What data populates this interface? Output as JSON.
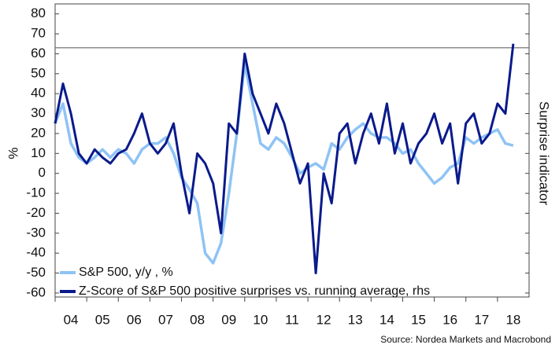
{
  "chart_data": {
    "type": "line",
    "y_label": "%",
    "y2_label": "Surprise indicator",
    "source": "Source: Nordea Markets and Macrobond",
    "x": [
      2004,
      2004.25,
      2004.5,
      2004.75,
      2005,
      2005.25,
      2005.5,
      2005.75,
      2006,
      2006.25,
      2006.5,
      2006.75,
      2007,
      2007.25,
      2007.5,
      2007.75,
      2008,
      2008.25,
      2008.5,
      2008.75,
      2009,
      2009.25,
      2009.5,
      2009.75,
      2010,
      2010.25,
      2010.5,
      2010.75,
      2011,
      2011.25,
      2011.5,
      2011.75,
      2012,
      2012.25,
      2012.5,
      2012.75,
      2013,
      2013.25,
      2013.5,
      2013.75,
      2014,
      2014.25,
      2014.5,
      2014.75,
      2015,
      2015.25,
      2015.5,
      2015.75,
      2016,
      2016.25,
      2016.5,
      2016.75,
      2017,
      2017.25,
      2017.5,
      2017.75,
      2018,
      2018.25,
      2018.5
    ],
    "series": [
      {
        "name": "S&P 500, y/y , %",
        "color": "#8ec3f5",
        "values": [
          25,
          35,
          15,
          8,
          5,
          8,
          12,
          8,
          12,
          10,
          5,
          12,
          15,
          15,
          18,
          10,
          -2,
          -8,
          -15,
          -40,
          -45,
          -35,
          -10,
          20,
          55,
          35,
          15,
          12,
          18,
          15,
          8,
          0,
          3,
          5,
          2,
          15,
          12,
          18,
          22,
          25,
          20,
          18,
          18,
          15,
          10,
          12,
          5,
          0,
          -5,
          -2,
          3,
          5,
          18,
          15,
          18,
          20,
          22,
          15,
          14
        ]
      },
      {
        "name": "Z-Score of S&P 500 positive surprises vs. running average, rhs",
        "color": "#0a1a8c",
        "values": [
          25,
          45,
          30,
          10,
          5,
          12,
          8,
          5,
          10,
          12,
          20,
          30,
          15,
          10,
          15,
          25,
          0,
          -20,
          10,
          5,
          -5,
          -30,
          25,
          20,
          60,
          40,
          30,
          20,
          35,
          25,
          10,
          -5,
          5,
          -50,
          0,
          -15,
          20,
          25,
          5,
          20,
          30,
          15,
          35,
          10,
          25,
          5,
          15,
          20,
          30,
          15,
          25,
          -5,
          25,
          30,
          15,
          20,
          35,
          30,
          65
        ]
      }
    ],
    "reference_line": 63,
    "xlim": [
      2004,
      2019
    ],
    "xticks": [
      {
        "value": 2004,
        "label": "04"
      },
      {
        "value": 2005,
        "label": "05"
      },
      {
        "value": 2006,
        "label": "06"
      },
      {
        "value": 2007,
        "label": "07"
      },
      {
        "value": 2008,
        "label": "08"
      },
      {
        "value": 2009,
        "label": "09"
      },
      {
        "value": 2010,
        "label": "10"
      },
      {
        "value": 2011,
        "label": "11"
      },
      {
        "value": 2012,
        "label": "12"
      },
      {
        "value": 2013,
        "label": "13"
      },
      {
        "value": 2014,
        "label": "14"
      },
      {
        "value": 2015,
        "label": "15"
      },
      {
        "value": 2016,
        "label": "16"
      },
      {
        "value": 2017,
        "label": "17"
      },
      {
        "value": 2018,
        "label": "18"
      }
    ],
    "ylim": [
      -62,
      85
    ],
    "yticks": [
      -60,
      -50,
      -40,
      -30,
      -20,
      -10,
      0,
      10,
      20,
      30,
      40,
      50,
      60,
      70,
      80
    ],
    "legend": "lower left"
  }
}
